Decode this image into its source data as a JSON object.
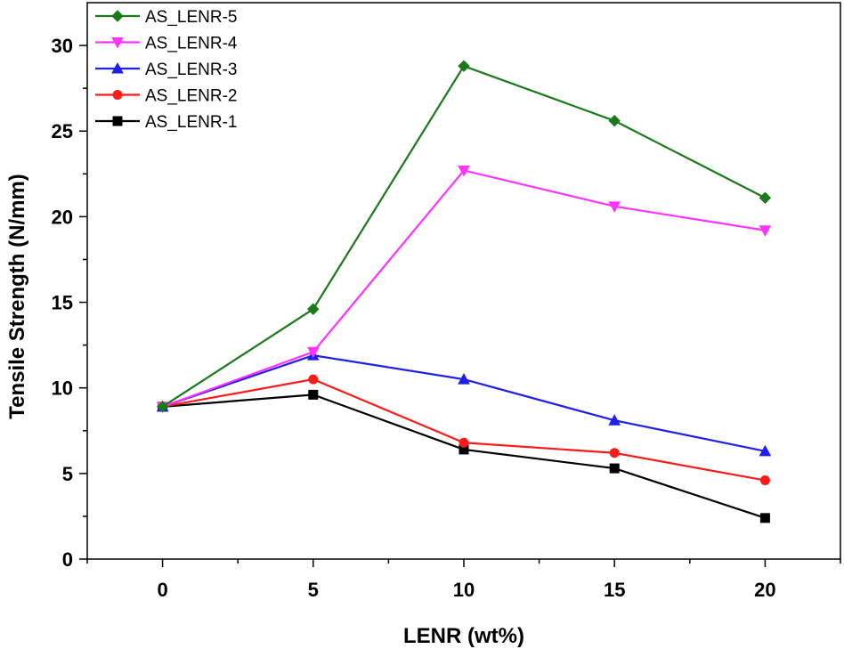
{
  "chart_data": {
    "type": "line",
    "title": "",
    "xlabel": "LENR (wt%)",
    "ylabel": "Tensile Strength (N/mm)",
    "x": [
      0,
      5,
      10,
      15,
      20
    ],
    "x_ticks": [
      "0",
      "5",
      "10",
      "15",
      "20"
    ],
    "y_ticks": [
      "0",
      "5",
      "10",
      "15",
      "20",
      "25",
      "30"
    ],
    "xlim": [
      -2.5,
      22.5
    ],
    "ylim": [
      0,
      32.5
    ],
    "grid": false,
    "legend_position": "top-left",
    "series": [
      {
        "name": "AS_LENR-5",
        "color": "#1a7a1a",
        "marker": "diamond",
        "values": [
          8.9,
          14.6,
          28.8,
          25.6,
          21.1
        ]
      },
      {
        "name": "AS_LENR-4",
        "color": "#ff33ff",
        "marker": "triangle-down",
        "values": [
          8.9,
          12.1,
          22.7,
          20.6,
          19.2
        ]
      },
      {
        "name": "AS_LENR-3",
        "color": "#1f1fe6",
        "marker": "triangle-up",
        "values": [
          8.9,
          11.9,
          10.5,
          8.1,
          6.3
        ]
      },
      {
        "name": "AS_LENR-2",
        "color": "#ff1a1a",
        "marker": "circle",
        "values": [
          8.9,
          10.5,
          6.8,
          6.2,
          4.6
        ]
      },
      {
        "name": "AS_LENR-1",
        "color": "#000000",
        "marker": "square",
        "values": [
          8.9,
          9.6,
          6.4,
          5.3,
          2.4
        ]
      }
    ]
  }
}
